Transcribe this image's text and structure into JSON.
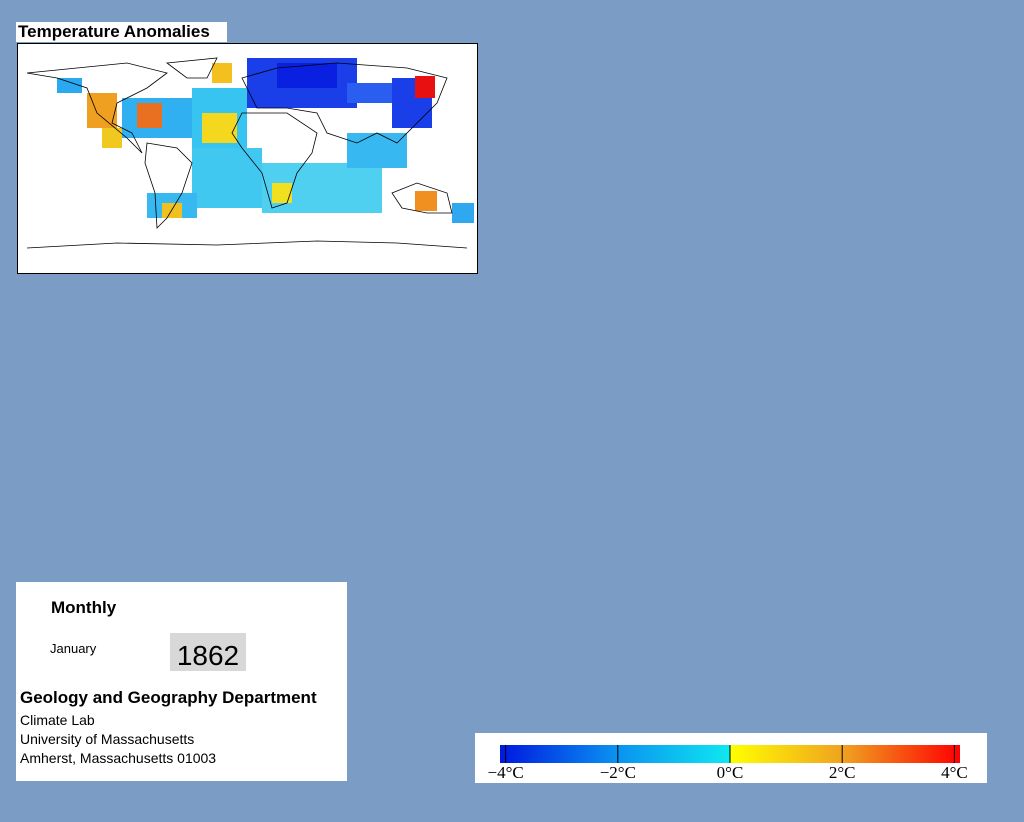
{
  "map": {
    "title": "Temperature Anomalies"
  },
  "info": {
    "period": "Monthly",
    "month": "January",
    "year": "1862",
    "department": "Geology and Geography Department",
    "address": [
      "Climate Lab",
      "University of Massachusetts",
      "Amherst, Massachusetts 01003"
    ]
  },
  "colorbar": {
    "lim": [
      -4.1,
      4.1
    ],
    "ticks": [
      {
        "value": -4,
        "label": "−4°C"
      },
      {
        "value": -2,
        "label": "−2°C"
      },
      {
        "value": 0,
        "label": "0°C"
      },
      {
        "value": 2,
        "label": "2°C"
      },
      {
        "value": 4,
        "label": "4°C"
      }
    ]
  }
}
